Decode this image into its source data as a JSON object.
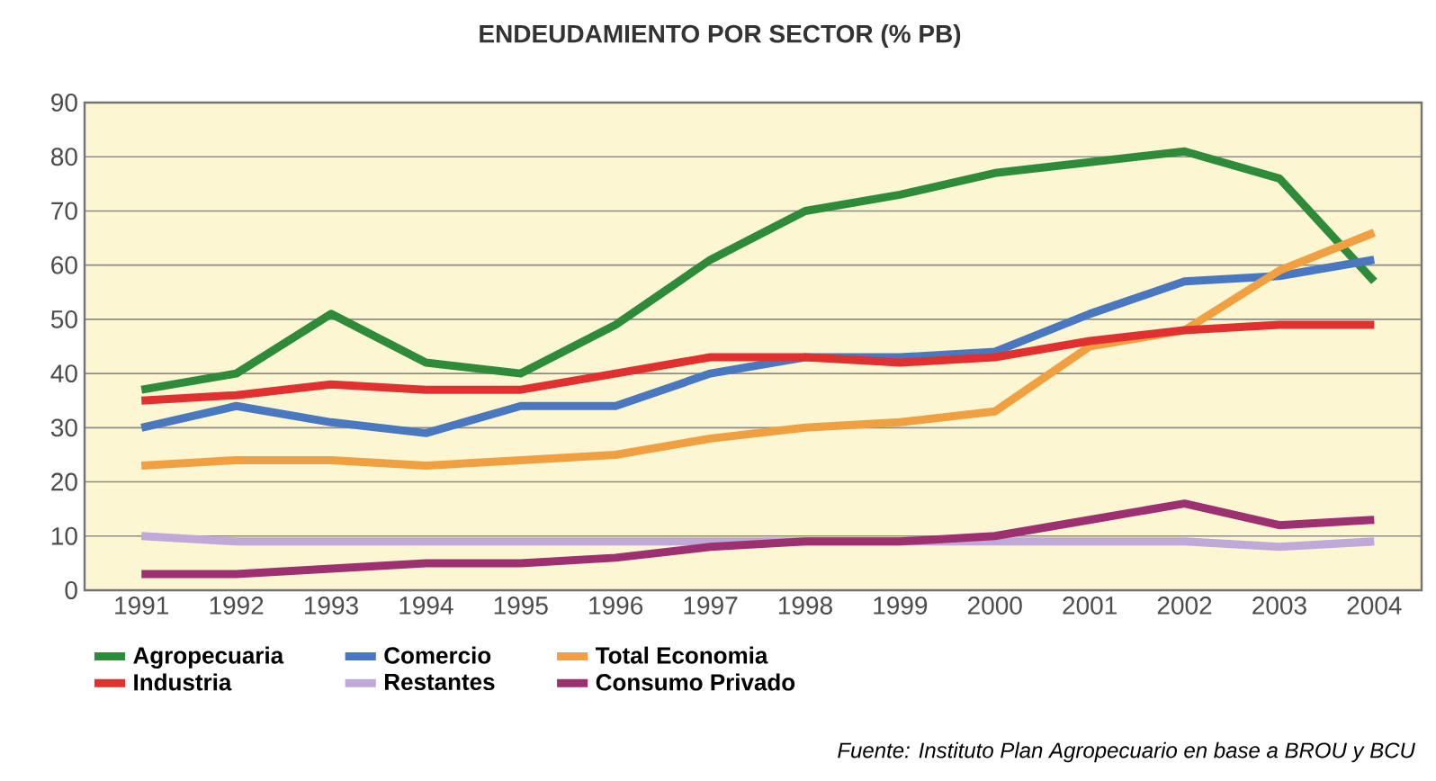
{
  "chart_data": {
    "type": "line",
    "title": "ENDEUDAMIENTO POR SECTOR (% PB)",
    "categories": [
      "1991",
      "1992",
      "1993",
      "1994",
      "1995",
      "1996",
      "1997",
      "1998",
      "1999",
      "2000",
      "2001",
      "2002",
      "2003",
      "2004"
    ],
    "series": [
      {
        "name": "Agropecuaria",
        "color": "#2e8b3a",
        "values": [
          37,
          40,
          51,
          42,
          40,
          49,
          61,
          70,
          73,
          77,
          79,
          81,
          76,
          57
        ]
      },
      {
        "name": "Comercio",
        "color": "#4a78c0",
        "values": [
          30,
          34,
          31,
          29,
          34,
          34,
          40,
          43,
          43,
          44,
          51,
          57,
          58,
          61
        ]
      },
      {
        "name": "Total Economia",
        "color": "#f0a040",
        "values": [
          23,
          24,
          24,
          23,
          24,
          25,
          28,
          30,
          31,
          33,
          45,
          48,
          59,
          66
        ]
      },
      {
        "name": "Industria",
        "color": "#e03030",
        "values": [
          35,
          36,
          38,
          37,
          37,
          40,
          43,
          43,
          42,
          43,
          46,
          48,
          49,
          49
        ]
      },
      {
        "name": "Restantes",
        "color": "#c0a8d8",
        "values": [
          10,
          9,
          9,
          9,
          9,
          9,
          9,
          9,
          9,
          9,
          9,
          9,
          8,
          9
        ]
      },
      {
        "name": "Consumo Privado",
        "color": "#9c3070",
        "values": [
          3,
          3,
          4,
          5,
          5,
          6,
          8,
          9,
          9,
          10,
          13,
          16,
          12,
          13
        ]
      }
    ],
    "ylim": [
      0,
      90
    ],
    "yticks": [
      0,
      10,
      20,
      30,
      40,
      50,
      60,
      70,
      80,
      90
    ],
    "grid": "y",
    "legend": "bottom",
    "marker": "none",
    "line_style": "solid",
    "annotations": [
      "Fuente: Instituto Plan Agropecuario en base a BROU y BCU"
    ]
  }
}
